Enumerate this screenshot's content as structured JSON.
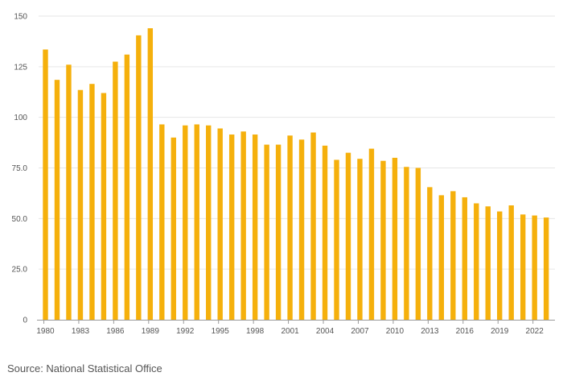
{
  "chart_data": {
    "type": "bar",
    "title": "",
    "xlabel": "",
    "ylabel": "",
    "ylim": [
      0,
      150
    ],
    "yticks": [
      0,
      25,
      50,
      75,
      100,
      125,
      150
    ],
    "ytick_labels": [
      "0",
      "25.0",
      "50.0",
      "75.0",
      "100",
      "125",
      "150"
    ],
    "grid": true,
    "categories": [
      "1980",
      "1981",
      "1982",
      "1983",
      "1984",
      "1985",
      "1986",
      "1987",
      "1988",
      "1989",
      "1990",
      "1991",
      "1992",
      "1993",
      "1994",
      "1995",
      "1996",
      "1997",
      "1998",
      "1999",
      "2000",
      "2001",
      "2002",
      "2003",
      "2004",
      "2005",
      "2006",
      "2007",
      "2008",
      "2009",
      "2010",
      "2011",
      "2012",
      "2013",
      "2014",
      "2015",
      "2016",
      "2017",
      "2018",
      "2019",
      "2020",
      "2021",
      "2022",
      "2023"
    ],
    "xtick_labels": [
      "1980",
      "1983",
      "1986",
      "1989",
      "1992",
      "1995",
      "1998",
      "2001",
      "2004",
      "2007",
      "2010",
      "2013",
      "2016",
      "2019",
      "2022"
    ],
    "values": [
      133.5,
      118.5,
      126,
      113.5,
      116.5,
      112,
      127.5,
      131,
      140.5,
      144,
      96.5,
      90,
      96,
      96.5,
      96,
      94.5,
      91.5,
      93,
      91.5,
      86.5,
      86.5,
      91,
      89,
      92.5,
      86,
      79,
      82.5,
      79.5,
      84.5,
      78.5,
      80,
      75.5,
      75,
      65.5,
      61.5,
      63.5,
      60.5,
      57.5,
      56,
      53.5,
      56.5,
      52,
      51.5,
      50.5
    ],
    "bar_color": "#f5b00c",
    "source": "Source: National Statistical Office"
  }
}
